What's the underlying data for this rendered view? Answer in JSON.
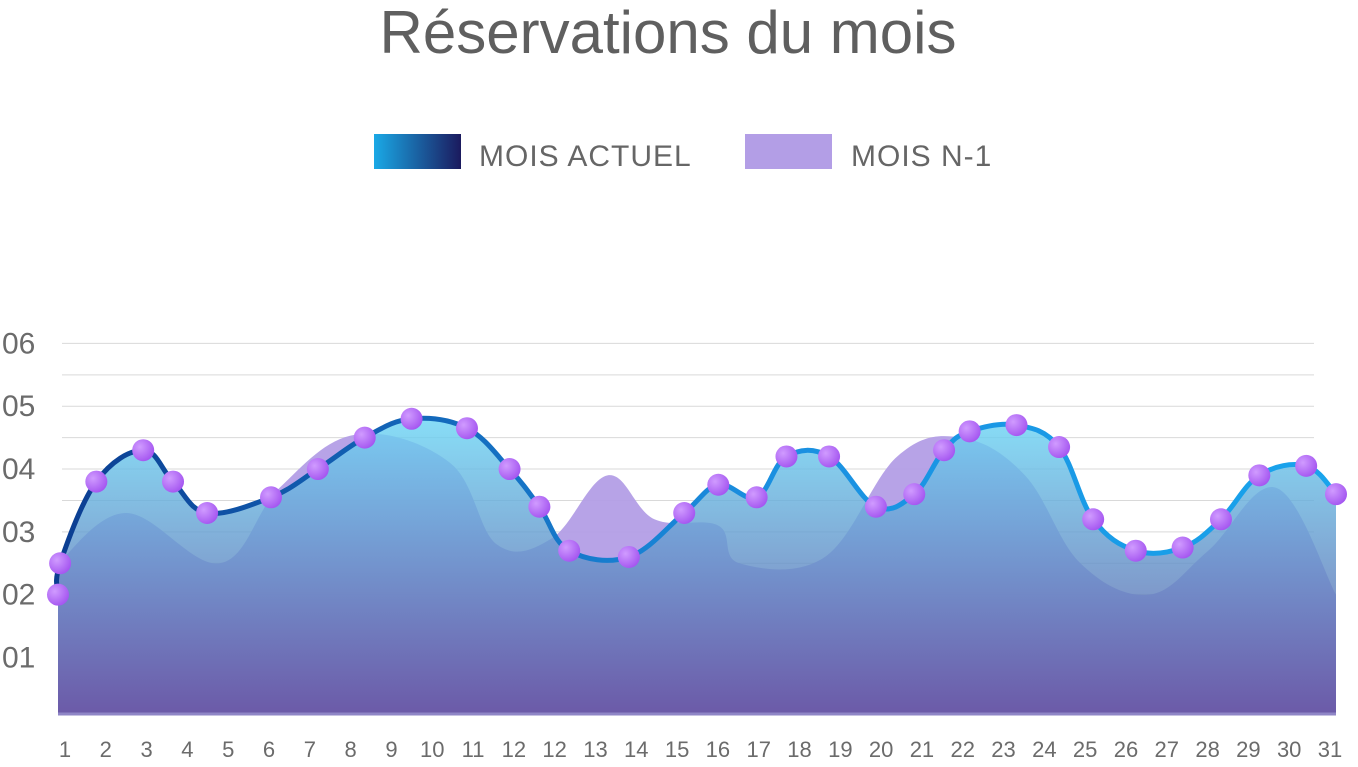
{
  "chart_data": {
    "type": "area",
    "title": "Réservations du mois",
    "legend": {
      "placement": "top-center",
      "entries": [
        {
          "name": "MOIS ACTUEL",
          "style": "gradient",
          "gradient": [
            "#1aa9e6",
            "#1b1a5e"
          ]
        },
        {
          "name": "MOIS N-1",
          "style": "solid",
          "color": "#b39ee6"
        }
      ]
    },
    "grid": true,
    "ylim": [
      0.1,
      6.5
    ],
    "y_ticks": [
      {
        "label": "01",
        "value": 1
      },
      {
        "label": "02",
        "value": 2
      },
      {
        "label": "03",
        "value": 3
      },
      {
        "label": "04",
        "value": 4
      },
      {
        "label": "05",
        "value": 5
      },
      {
        "label": "06",
        "value": 6
      }
    ],
    "x_tick_labels": [
      "1",
      "2",
      "3",
      "4",
      "5",
      "6",
      "7",
      "8",
      "9",
      "10",
      "11",
      "12",
      "12",
      "13",
      "14",
      "15",
      "16",
      "17",
      "18",
      "19",
      "20",
      "21",
      "22",
      "23",
      "24",
      "25",
      "26",
      "27",
      "28",
      "29",
      "30",
      "31"
    ],
    "series": [
      {
        "name": "MOIS ACTUEL",
        "line_gradient": [
          "#0b3d91",
          "#1a8fe0",
          "#19a4ec"
        ],
        "area_gradient_top": "#6dd6f5",
        "area_gradient_bottom": "#5b4a9a",
        "marker_color": "#a455f0",
        "points": [
          {
            "x": 0.0,
            "y": 2.0
          },
          {
            "x": 0.05,
            "y": 2.5
          },
          {
            "x": 0.9,
            "y": 3.8
          },
          {
            "x": 2.0,
            "y": 4.3
          },
          {
            "x": 2.7,
            "y": 3.8
          },
          {
            "x": 3.5,
            "y": 3.3
          },
          {
            "x": 5.0,
            "y": 3.55
          },
          {
            "x": 6.1,
            "y": 4.0
          },
          {
            "x": 7.2,
            "y": 4.5
          },
          {
            "x": 8.3,
            "y": 4.8
          },
          {
            "x": 9.6,
            "y": 4.65
          },
          {
            "x": 10.6,
            "y": 4.0
          },
          {
            "x": 11.3,
            "y": 3.4
          },
          {
            "x": 12.0,
            "y": 2.7
          },
          {
            "x": 13.4,
            "y": 2.6
          },
          {
            "x": 14.7,
            "y": 3.3
          },
          {
            "x": 15.5,
            "y": 3.75
          },
          {
            "x": 16.4,
            "y": 3.55
          },
          {
            "x": 17.1,
            "y": 4.2
          },
          {
            "x": 18.1,
            "y": 4.2
          },
          {
            "x": 19.2,
            "y": 3.4
          },
          {
            "x": 20.1,
            "y": 3.6
          },
          {
            "x": 20.8,
            "y": 4.3
          },
          {
            "x": 21.4,
            "y": 4.6
          },
          {
            "x": 22.5,
            "y": 4.7
          },
          {
            "x": 23.5,
            "y": 4.35
          },
          {
            "x": 24.3,
            "y": 3.2
          },
          {
            "x": 25.3,
            "y": 2.7
          },
          {
            "x": 26.4,
            "y": 2.75
          },
          {
            "x": 27.3,
            "y": 3.2
          },
          {
            "x": 28.2,
            "y": 3.9
          },
          {
            "x": 29.3,
            "y": 4.05
          },
          {
            "x": 30.0,
            "y": 3.6
          }
        ]
      },
      {
        "name": "MOIS N-1",
        "color": "#b39ee6",
        "points": [
          {
            "x": 0.0,
            "y": 2.5
          },
          {
            "x": 1.6,
            "y": 3.3
          },
          {
            "x": 3.8,
            "y": 2.5
          },
          {
            "x": 5.2,
            "y": 3.7
          },
          {
            "x": 7.0,
            "y": 4.55
          },
          {
            "x": 9.2,
            "y": 4.1
          },
          {
            "x": 10.3,
            "y": 2.8
          },
          {
            "x": 11.6,
            "y": 2.9
          },
          {
            "x": 12.9,
            "y": 3.9
          },
          {
            "x": 14.0,
            "y": 3.2
          },
          {
            "x": 15.5,
            "y": 3.1
          },
          {
            "x": 16.0,
            "y": 2.5
          },
          {
            "x": 18.0,
            "y": 2.6
          },
          {
            "x": 19.7,
            "y": 4.2
          },
          {
            "x": 21.2,
            "y": 4.5
          },
          {
            "x": 22.7,
            "y": 3.9
          },
          {
            "x": 24.0,
            "y": 2.5
          },
          {
            "x": 25.6,
            "y": 2.0
          },
          {
            "x": 27.0,
            "y": 2.7
          },
          {
            "x": 28.6,
            "y": 3.7
          },
          {
            "x": 30.0,
            "y": 2.0
          }
        ]
      }
    ]
  }
}
